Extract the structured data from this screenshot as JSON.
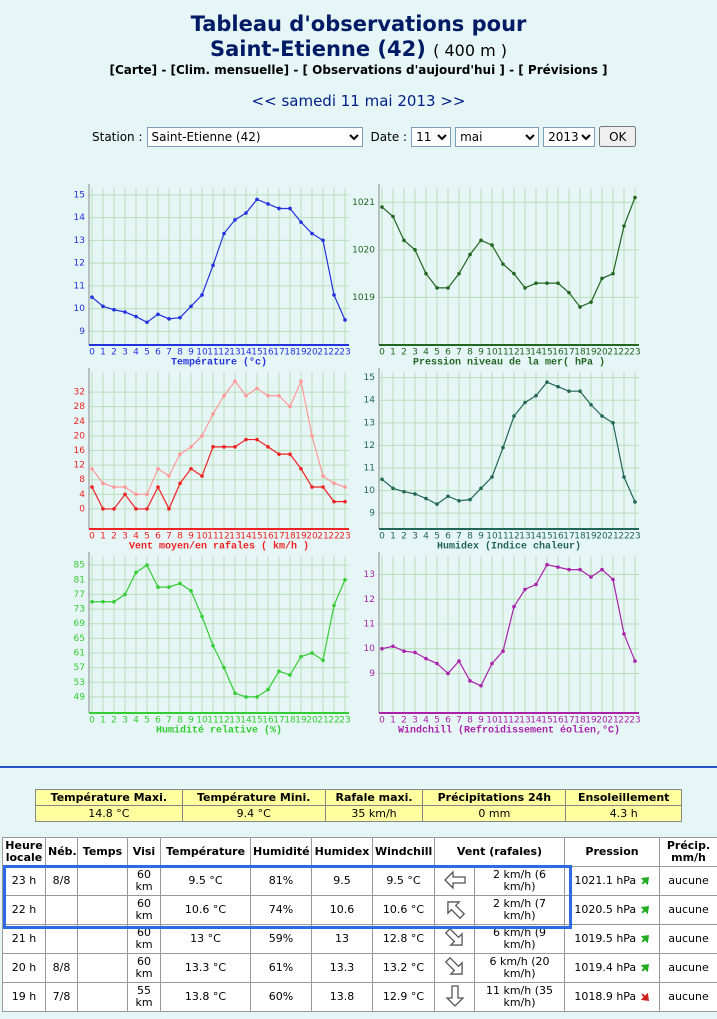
{
  "header": {
    "title": "Tableau d'observations pour",
    "station_name": "Saint-Etienne (42)",
    "altitude": "( 400 m )",
    "links": [
      "[Carte]",
      "[Clim. mensuelle]",
      "[ Observations d'aujourd'hui ]",
      "[ Prévisions ]"
    ],
    "separator": "-",
    "prev": "<<",
    "date": "samedi 11 mai 2013",
    "next": ">>"
  },
  "form": {
    "station_label": "Station :",
    "station": "Saint-Etienne (42)",
    "date_label": "Date :",
    "day": "11",
    "month": "mai",
    "year": "2013",
    "button": "OK"
  },
  "chart_data": [
    {
      "type": "line",
      "title": "Température (°c)",
      "categories": [
        "0",
        "1",
        "2",
        "3",
        "4",
        "5",
        "6",
        "7",
        "8",
        "9",
        "10",
        "11",
        "12",
        "13",
        "14",
        "15",
        "16",
        "17",
        "18",
        "19",
        "20",
        "21",
        "22",
        "23"
      ],
      "series": [
        {
          "color": "#2233dd",
          "values": [
            10.5,
            10.1,
            9.95,
            9.85,
            9.65,
            9.4,
            9.75,
            9.55,
            9.6,
            10.1,
            10.6,
            11.9,
            13.3,
            13.9,
            14.2,
            14.8,
            14.6,
            14.4,
            14.4,
            13.8,
            13.3,
            13.0,
            10.6,
            9.5
          ]
        }
      ],
      "ylim": [
        8.4,
        15.3
      ],
      "yticks": [
        9,
        10,
        11,
        12,
        13,
        14,
        15
      ],
      "grid": true
    },
    {
      "type": "line",
      "title": "Pression niveau de la mer( hPa )",
      "categories": [
        "0",
        "1",
        "2",
        "3",
        "4",
        "5",
        "6",
        "7",
        "8",
        "9",
        "10",
        "11",
        "12",
        "13",
        "14",
        "15",
        "16",
        "17",
        "18",
        "19",
        "20",
        "21",
        "22",
        "23"
      ],
      "series": [
        {
          "color": "#226622",
          "values": [
            1020.9,
            1020.7,
            1020.2,
            1020.0,
            1019.5,
            1019.2,
            1019.2,
            1019.5,
            1019.9,
            1020.2,
            1020.1,
            1019.7,
            1019.5,
            1019.2,
            1019.3,
            1019.3,
            1019.3,
            1019.1,
            1018.8,
            1018.9,
            1019.4,
            1019.5,
            1020.5,
            1021.1
          ]
        }
      ],
      "ylim": [
        1018.0,
        1021.3
      ],
      "yticks": [
        1019,
        1020,
        1021
      ],
      "grid": true
    },
    {
      "type": "line",
      "title": "Vent moyen/en rafales ( km/h )",
      "categories": [
        "0",
        "1",
        "2",
        "3",
        "4",
        "5",
        "6",
        "7",
        "8",
        "9",
        "10",
        "11",
        "12",
        "13",
        "14",
        "15",
        "16",
        "17",
        "18",
        "19",
        "20",
        "21",
        "22",
        "23"
      ],
      "series": [
        {
          "color": "#ee2222",
          "values": [
            6,
            0,
            0,
            4,
            0,
            0,
            6,
            0,
            7,
            11,
            9,
            17,
            17,
            17,
            19,
            19,
            17,
            15,
            15,
            11,
            6,
            6,
            2,
            2
          ]
        },
        {
          "color": "#ff9999",
          "values": [
            11,
            7,
            6,
            6,
            4,
            4,
            11,
            9,
            15,
            17,
            20,
            26,
            31,
            35,
            31,
            33,
            31,
            31,
            28,
            35,
            20,
            9,
            7,
            6
          ]
        }
      ],
      "ylim": [
        -5.5,
        37.5
      ],
      "yticks": [
        0,
        4,
        8,
        12,
        16,
        20,
        24,
        28,
        32
      ],
      "grid": true
    },
    {
      "type": "line",
      "title": "Humidex (Indice chaleur)",
      "categories": [
        "0",
        "1",
        "2",
        "3",
        "4",
        "5",
        "6",
        "7",
        "8",
        "9",
        "10",
        "11",
        "12",
        "13",
        "14",
        "15",
        "16",
        "17",
        "18",
        "19",
        "20",
        "21",
        "22",
        "23"
      ],
      "series": [
        {
          "color": "#226655",
          "values": [
            10.5,
            10.1,
            9.95,
            9.85,
            9.65,
            9.4,
            9.75,
            9.55,
            9.6,
            10.1,
            10.6,
            11.9,
            13.3,
            13.9,
            14.2,
            14.8,
            14.6,
            14.4,
            14.4,
            13.8,
            13.3,
            13.0,
            10.6,
            9.5
          ]
        }
      ],
      "ylim": [
        8.3,
        15.25
      ],
      "yticks": [
        9,
        10,
        11,
        12,
        13,
        14,
        15
      ],
      "grid": true
    },
    {
      "type": "line",
      "title": "Humidité relative (%)",
      "categories": [
        "0",
        "1",
        "2",
        "3",
        "4",
        "5",
        "6",
        "7",
        "8",
        "9",
        "10",
        "11",
        "12",
        "13",
        "14",
        "15",
        "16",
        "17",
        "18",
        "19",
        "20",
        "21",
        "22",
        "23"
      ],
      "series": [
        {
          "color": "#33cc33",
          "values": [
            75,
            75,
            75,
            77,
            83,
            85,
            79,
            79,
            80,
            78,
            71,
            63,
            57,
            50,
            49,
            49,
            51,
            56,
            55,
            60,
            61,
            59,
            74,
            81
          ]
        }
      ],
      "ylim": [
        44.6,
        87.5
      ],
      "yticks": [
        49,
        53,
        57,
        61,
        65,
        69,
        73,
        77,
        81,
        85
      ],
      "grid": true
    },
    {
      "type": "line",
      "title": "Windchill (Refroidissement éolien,°C)",
      "categories": [
        "0",
        "1",
        "2",
        "3",
        "4",
        "5",
        "6",
        "7",
        "8",
        "9",
        "10",
        "11",
        "12",
        "13",
        "14",
        "15",
        "16",
        "17",
        "18",
        "19",
        "20",
        "21",
        "22",
        "23"
      ],
      "series": [
        {
          "color": "#aa22aa",
          "values": [
            10.0,
            10.1,
            9.9,
            9.85,
            9.6,
            9.4,
            9.0,
            9.5,
            8.7,
            8.5,
            9.4,
            9.9,
            11.7,
            12.4,
            12.6,
            13.4,
            13.3,
            13.2,
            13.2,
            12.9,
            13.2,
            12.8,
            10.6,
            9.5
          ]
        }
      ],
      "ylim": [
        7.4,
        13.75
      ],
      "yticks": [
        9,
        10,
        11,
        12,
        13
      ],
      "grid": true
    }
  ],
  "summary": {
    "headers": [
      "Température Maxi.",
      "Température Mini.",
      "Rafale maxi.",
      "Précipitations 24h",
      "Ensoleillement"
    ],
    "values": [
      "14.8 °C",
      "9.4 °C",
      "35 km/h",
      "0 mm",
      "4.3 h"
    ]
  },
  "observations": {
    "headers": [
      "Heure locale",
      "Néb.",
      "Temps",
      "Visi",
      "Température",
      "Humidité",
      "Humidex",
      "Windchill",
      "Vent (rafales)",
      "Pression",
      "Précip. mm/h"
    ],
    "rows": [
      [
        "23 h",
        "8/8",
        null,
        "60 km",
        "9.5 °C",
        "81%",
        "9.5",
        "9.5 °C",
        "2 km/h (6 km/h)",
        "1021.1 hPa",
        "aucune"
      ],
      [
        "22 h",
        null,
        null,
        "60 km",
        "10.6 °C",
        "74%",
        "10.6",
        "10.6 °C",
        "2 km/h (7 km/h)",
        "1020.5 hPa",
        "aucune"
      ],
      [
        "21 h",
        null,
        null,
        "60 km",
        "13 °C",
        "59%",
        "13",
        "12.8 °C",
        "6 km/h (9 km/h)",
        "1019.5 hPa",
        "aucune"
      ],
      [
        "20 h",
        "8/8",
        null,
        "60 km",
        "13.3 °C",
        "61%",
        "13.3",
        "13.2 °C",
        "6 km/h (20 km/h)",
        "1019.4 hPa",
        "aucune"
      ],
      [
        "19 h",
        "7/8",
        null,
        "55 km",
        "13.8 °C",
        "60%",
        "13.8",
        "12.9 °C",
        "11 km/h (35 km/h)",
        "1018.9 hPa",
        "aucune"
      ]
    ]
  }
}
